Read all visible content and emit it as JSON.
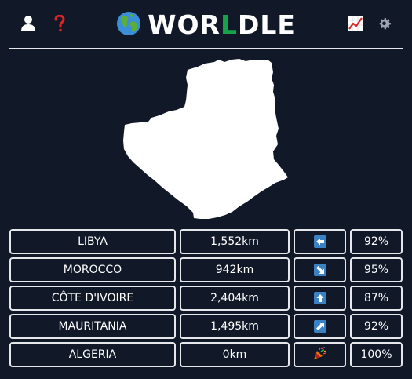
{
  "header": {
    "title_prefix": "WOR",
    "title_highlight": "L",
    "title_suffix": "DLE",
    "left_icons": [
      "user-icon",
      "help-icon"
    ],
    "right_icons": [
      "stats-chart-icon",
      "settings-gear-icon"
    ]
  },
  "map": {
    "icon": "country-silhouette",
    "fill_color": "#ffffff"
  },
  "guesses": [
    {
      "country": "LIBYA",
      "distance": "1,552km",
      "direction": "left-arrow-icon",
      "proximity": "92%"
    },
    {
      "country": "MOROCCO",
      "distance": "942km",
      "direction": "down-right-arrow-icon",
      "proximity": "95%"
    },
    {
      "country": "CÔTE D'IVOIRE",
      "distance": "2,404km",
      "direction": "up-arrow-icon",
      "proximity": "87%"
    },
    {
      "country": "MAURITANIA",
      "distance": "1,495km",
      "direction": "up-right-arrow-icon",
      "proximity": "92%"
    },
    {
      "country": "ALGERIA",
      "distance": "0km",
      "direction": "party-popper-icon",
      "proximity": "100%"
    }
  ],
  "colors": {
    "background": "#111827",
    "border": "#e5e7eb",
    "accent_green": "#16a34a",
    "arrow_blue": "#3b82c4",
    "help_red": "#dc2626"
  }
}
